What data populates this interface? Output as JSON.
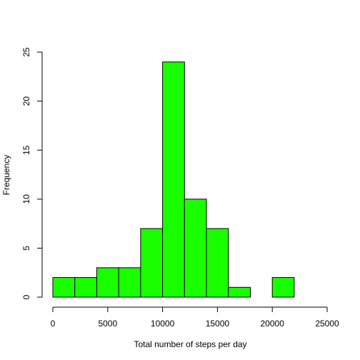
{
  "chart_data": {
    "type": "bar",
    "subtype": "histogram",
    "bins": [
      {
        "start": 0,
        "end": 2000,
        "count": 2
      },
      {
        "start": 2000,
        "end": 4000,
        "count": 2
      },
      {
        "start": 4000,
        "end": 6000,
        "count": 3
      },
      {
        "start": 6000,
        "end": 8000,
        "count": 3
      },
      {
        "start": 8000,
        "end": 10000,
        "count": 7
      },
      {
        "start": 10000,
        "end": 12000,
        "count": 24
      },
      {
        "start": 12000,
        "end": 14000,
        "count": 10
      },
      {
        "start": 14000,
        "end": 16000,
        "count": 7
      },
      {
        "start": 16000,
        "end": 18000,
        "count": 1
      },
      {
        "start": 18000,
        "end": 20000,
        "count": 0
      },
      {
        "start": 20000,
        "end": 22000,
        "count": 2
      }
    ],
    "title": "",
    "xlabel": "Total number of steps per day",
    "ylabel": "Frequency",
    "xlim": [
      0,
      25000
    ],
    "ylim": [
      0,
      25
    ],
    "x_ticks": [
      "0",
      "5000",
      "10000",
      "15000",
      "20000",
      "25000"
    ],
    "y_ticks": [
      "0",
      "5",
      "10",
      "15",
      "20",
      "25"
    ],
    "bar_color": "#1aff00",
    "bar_border_color": "#000000",
    "grid": false,
    "legend": "none"
  }
}
